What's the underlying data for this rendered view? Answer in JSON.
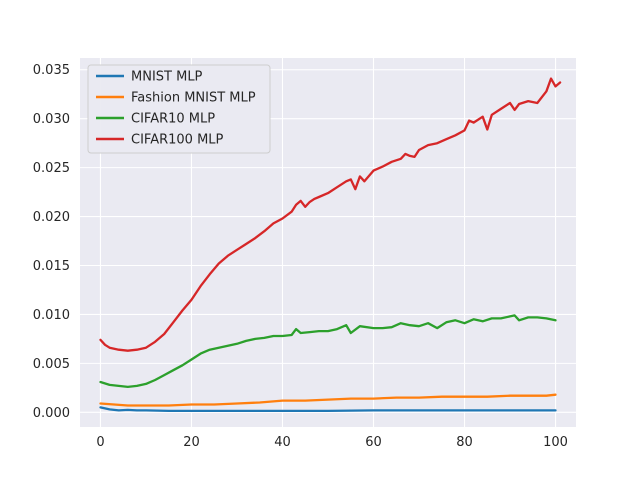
{
  "chart_data": {
    "type": "line",
    "title": "",
    "xlabel": "",
    "ylabel": "",
    "xlim": [
      -4.5,
      104.5
    ],
    "ylim": [
      -0.0015,
      0.0362
    ],
    "xticks": [
      0,
      20,
      40,
      60,
      80,
      100
    ],
    "xtick_labels": [
      "0",
      "20",
      "40",
      "60",
      "80",
      "100"
    ],
    "yticks": [
      0,
      0.005,
      0.01,
      0.015,
      0.02,
      0.025,
      0.03,
      0.035
    ],
    "ytick_labels": [
      "0.000",
      "0.005",
      "0.010",
      "0.015",
      "0.020",
      "0.025",
      "0.030",
      "0.035"
    ],
    "grid": true,
    "style": "seaborn-darkgrid",
    "legend_position": "upper-left",
    "series": [
      {
        "name": "MNIST MLP",
        "color": "#1f77b4",
        "points": [
          [
            0,
            0.0005
          ],
          [
            2,
            0.0003
          ],
          [
            4,
            0.0002
          ],
          [
            6,
            0.00025
          ],
          [
            8,
            0.0002
          ],
          [
            10,
            0.0002
          ],
          [
            15,
            0.00015
          ],
          [
            20,
            0.00015
          ],
          [
            30,
            0.00015
          ],
          [
            40,
            0.00015
          ],
          [
            50,
            0.00015
          ],
          [
            60,
            0.0002
          ],
          [
            70,
            0.0002
          ],
          [
            80,
            0.0002
          ],
          [
            90,
            0.0002
          ],
          [
            100,
            0.0002
          ]
        ]
      },
      {
        "name": "Fashion MNIST MLP",
        "color": "#ff7f0e",
        "points": [
          [
            0,
            0.0009
          ],
          [
            3,
            0.0008
          ],
          [
            6,
            0.0007
          ],
          [
            10,
            0.0007
          ],
          [
            15,
            0.0007
          ],
          [
            20,
            0.0008
          ],
          [
            25,
            0.0008
          ],
          [
            30,
            0.0009
          ],
          [
            35,
            0.001
          ],
          [
            40,
            0.0012
          ],
          [
            45,
            0.0012
          ],
          [
            50,
            0.0013
          ],
          [
            55,
            0.0014
          ],
          [
            60,
            0.0014
          ],
          [
            65,
            0.0015
          ],
          [
            70,
            0.0015
          ],
          [
            75,
            0.0016
          ],
          [
            80,
            0.0016
          ],
          [
            85,
            0.0016
          ],
          [
            90,
            0.0017
          ],
          [
            95,
            0.0017
          ],
          [
            98,
            0.0017
          ],
          [
            100,
            0.0018
          ]
        ]
      },
      {
        "name": "CIFAR10 MLP",
        "color": "#2ca02c",
        "points": [
          [
            0,
            0.0031
          ],
          [
            2,
            0.0028
          ],
          [
            4,
            0.0027
          ],
          [
            6,
            0.0026
          ],
          [
            8,
            0.0027
          ],
          [
            10,
            0.0029
          ],
          [
            12,
            0.0033
          ],
          [
            14,
            0.0038
          ],
          [
            16,
            0.0043
          ],
          [
            18,
            0.0048
          ],
          [
            20,
            0.0054
          ],
          [
            22,
            0.006
          ],
          [
            24,
            0.0064
          ],
          [
            26,
            0.0066
          ],
          [
            28,
            0.0068
          ],
          [
            30,
            0.007
          ],
          [
            32,
            0.0073
          ],
          [
            34,
            0.0075
          ],
          [
            36,
            0.0076
          ],
          [
            38,
            0.0078
          ],
          [
            40,
            0.0078
          ],
          [
            42,
            0.0079
          ],
          [
            43,
            0.0085
          ],
          [
            44,
            0.0081
          ],
          [
            46,
            0.0082
          ],
          [
            48,
            0.0083
          ],
          [
            50,
            0.0083
          ],
          [
            52,
            0.0085
          ],
          [
            54,
            0.0089
          ],
          [
            55,
            0.0081
          ],
          [
            57,
            0.0088
          ],
          [
            60,
            0.0086
          ],
          [
            62,
            0.0086
          ],
          [
            64,
            0.0087
          ],
          [
            66,
            0.0091
          ],
          [
            68,
            0.0089
          ],
          [
            70,
            0.0088
          ],
          [
            72,
            0.0091
          ],
          [
            74,
            0.0086
          ],
          [
            76,
            0.0092
          ],
          [
            78,
            0.0094
          ],
          [
            80,
            0.0091
          ],
          [
            82,
            0.0095
          ],
          [
            84,
            0.0093
          ],
          [
            86,
            0.0096
          ],
          [
            88,
            0.0096
          ],
          [
            90,
            0.0098
          ],
          [
            91,
            0.0099
          ],
          [
            92,
            0.0094
          ],
          [
            94,
            0.0097
          ],
          [
            96,
            0.0097
          ],
          [
            98,
            0.0096
          ],
          [
            100,
            0.0094
          ]
        ]
      },
      {
        "name": "CIFAR100 MLP",
        "color": "#d62728",
        "points": [
          [
            0,
            0.0074
          ],
          [
            1,
            0.0069
          ],
          [
            2,
            0.0066
          ],
          [
            4,
            0.0064
          ],
          [
            6,
            0.0063
          ],
          [
            8,
            0.0064
          ],
          [
            10,
            0.0066
          ],
          [
            12,
            0.0072
          ],
          [
            14,
            0.008
          ],
          [
            16,
            0.0092
          ],
          [
            18,
            0.0104
          ],
          [
            20,
            0.0115
          ],
          [
            22,
            0.0129
          ],
          [
            24,
            0.0141
          ],
          [
            26,
            0.0152
          ],
          [
            28,
            0.016
          ],
          [
            30,
            0.0166
          ],
          [
            32,
            0.0172
          ],
          [
            34,
            0.0178
          ],
          [
            36,
            0.0185
          ],
          [
            38,
            0.0193
          ],
          [
            40,
            0.0198
          ],
          [
            42,
            0.0205
          ],
          [
            43,
            0.0212
          ],
          [
            44,
            0.0216
          ],
          [
            45,
            0.021
          ],
          [
            46,
            0.0215
          ],
          [
            47,
            0.0218
          ],
          [
            48,
            0.022
          ],
          [
            50,
            0.0224
          ],
          [
            52,
            0.023
          ],
          [
            54,
            0.0236
          ],
          [
            55,
            0.0238
          ],
          [
            56,
            0.0228
          ],
          [
            57,
            0.0241
          ],
          [
            58,
            0.0236
          ],
          [
            60,
            0.0247
          ],
          [
            62,
            0.0251
          ],
          [
            64,
            0.0256
          ],
          [
            66,
            0.0259
          ],
          [
            67,
            0.0264
          ],
          [
            68,
            0.0262
          ],
          [
            69,
            0.0261
          ],
          [
            70,
            0.0268
          ],
          [
            72,
            0.0273
          ],
          [
            74,
            0.0275
          ],
          [
            76,
            0.0279
          ],
          [
            78,
            0.0283
          ],
          [
            80,
            0.0288
          ],
          [
            81,
            0.0298
          ],
          [
            82,
            0.0296
          ],
          [
            84,
            0.0302
          ],
          [
            85,
            0.0289
          ],
          [
            86,
            0.0304
          ],
          [
            88,
            0.031
          ],
          [
            90,
            0.0316
          ],
          [
            91,
            0.0309
          ],
          [
            92,
            0.0315
          ],
          [
            94,
            0.0318
          ],
          [
            96,
            0.0316
          ],
          [
            98,
            0.0328
          ],
          [
            99,
            0.0341
          ],
          [
            100,
            0.0333
          ],
          [
            101,
            0.0337
          ]
        ]
      }
    ]
  }
}
